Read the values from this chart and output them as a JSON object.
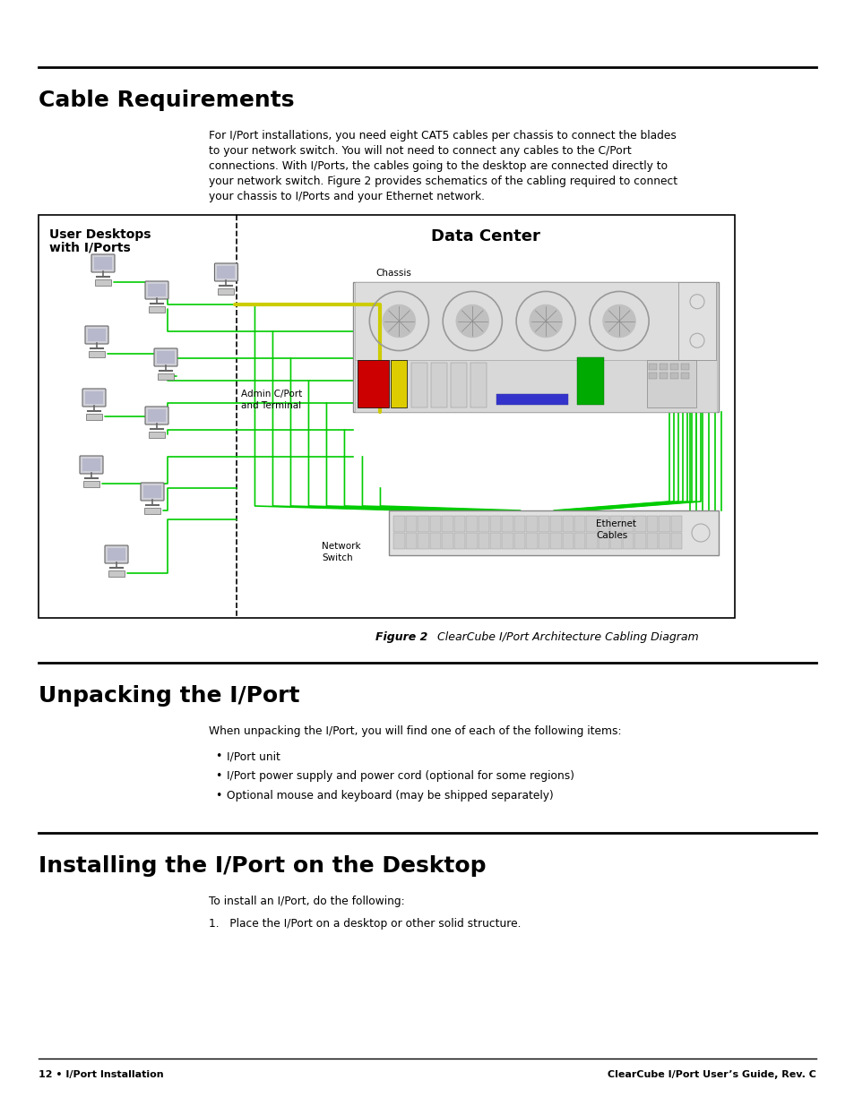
{
  "bg_color": "#ffffff",
  "page_width": 9.54,
  "page_height": 12.35,
  "green_color": "#00cc00",
  "yellow_color": "#cccc00",
  "section1_title": "Cable Requirements",
  "section1_body_line1": "For I/Port installations, you need eight CAT5 cables per chassis to connect the blades",
  "section1_body_line2": "to your network switch. You will not need to connect any cables to the C/Port",
  "section1_body_line3": "connections. With I/Ports, the cables going to the desktop are connected directly to",
  "section1_body_line4": "your network switch. Figure 2 provides schematics of the cabling required to connect",
  "section1_body_line5": "your chassis to I/Ports and your Ethernet network.",
  "diagram_label_left1": "User Desktops",
  "diagram_label_left2": "with I/Ports",
  "diagram_label_right": "Data Center",
  "diagram_chassis_label": "Chassis",
  "diagram_admin_label1": "Admin C/Port",
  "diagram_admin_label2": "and Terminal",
  "diagram_ethernet_label1": "Ethernet",
  "diagram_ethernet_label2": "Cables",
  "diagram_network_label1": "Network",
  "diagram_network_label2": "Switch",
  "fig_caption_bold": "Figure 2",
  "fig_caption_rest": "  ClearCube I/Port Architecture Cabling Diagram",
  "section2_title": "Unpacking the I/Port",
  "section2_body": "When unpacking the I/Port, you will find one of each of the following items:",
  "section2_bullets": [
    "I/Port unit",
    "I/Port power supply and power cord (optional for some regions)",
    "Optional mouse and keyboard (may be shipped separately)"
  ],
  "section3_title": "Installing the I/Port on the Desktop",
  "section3_body": "To install an I/Port, do the following:",
  "section3_item": "Place the I/Port on a desktop or other solid structure.",
  "footer_left": "12 • I/Port Installation",
  "footer_right": "ClearCube I/Port User’s Guide, Rev. C"
}
